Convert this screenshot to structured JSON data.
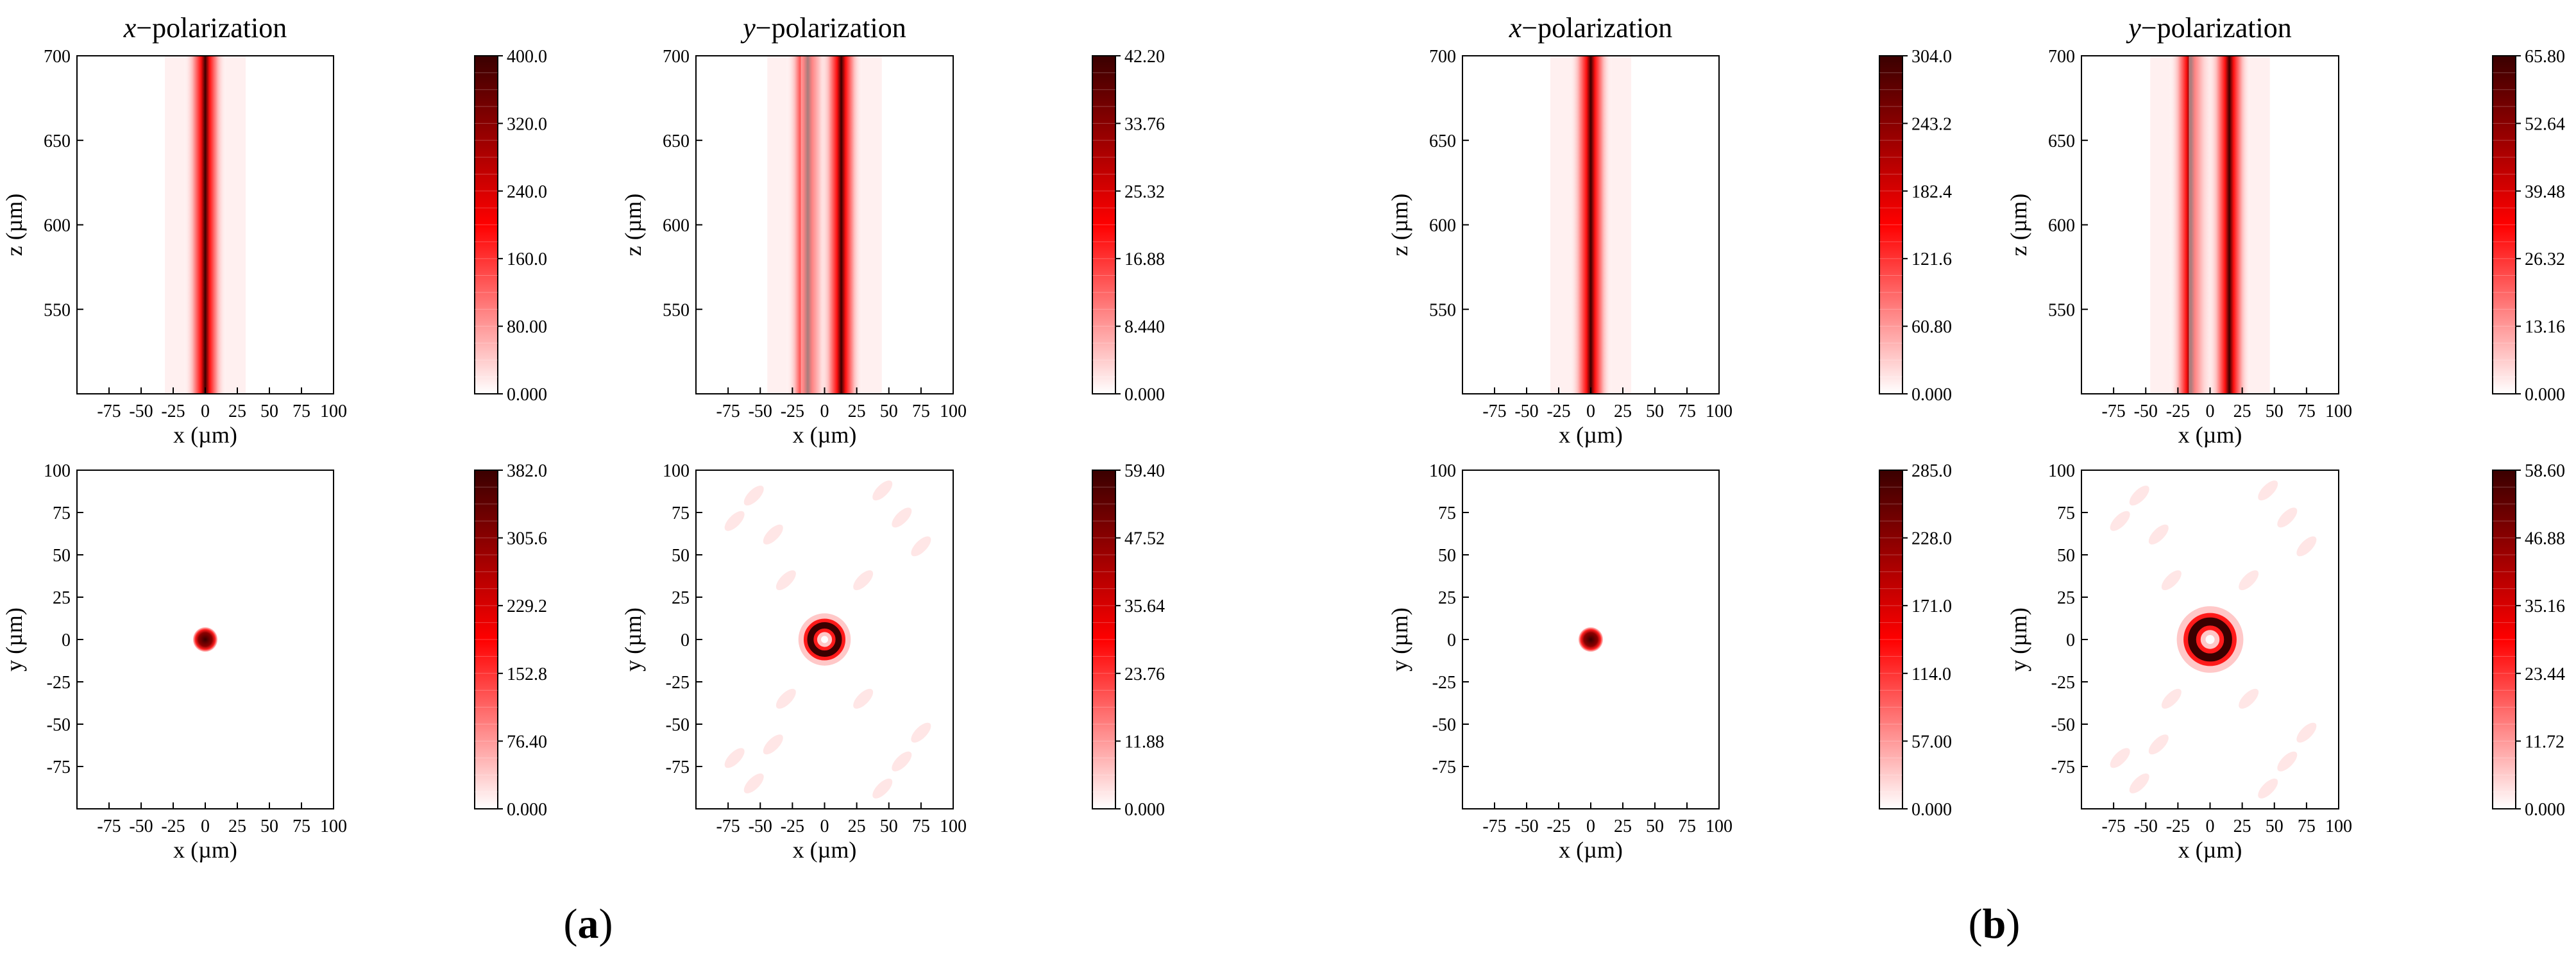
{
  "chart_data": [
    {
      "type": "heatmap",
      "panel": "a",
      "row": "top",
      "pol": "x",
      "title": "x−polarization",
      "title_var": "x",
      "title_rest": "−polarization",
      "xlabel": "x (µm)",
      "ylabel": "z (µm)",
      "xlim": [
        -100,
        100
      ],
      "ylim": [
        500,
        700
      ],
      "xticks": [
        "-75",
        "-50",
        "-25",
        "0",
        "25",
        "50",
        "75",
        "100"
      ],
      "yticks": [
        "550",
        "600",
        "650",
        "700"
      ],
      "colorbar": [
        "0.000",
        "80.00",
        "160.0",
        "240.0",
        "320.0",
        "400.0"
      ],
      "feature": {
        "kind": "beam",
        "centers": [
          0
        ],
        "width": 7
      }
    },
    {
      "type": "heatmap",
      "panel": "a",
      "row": "top",
      "pol": "y",
      "title": "y−polarization",
      "title_var": "y",
      "title_rest": "−polarization",
      "xlabel": "x (µm)",
      "ylabel": "z (µm)",
      "xlim": [
        -100,
        100
      ],
      "ylim": [
        500,
        700
      ],
      "xticks": [
        "-75",
        "-50",
        "-25",
        "0",
        "25",
        "50",
        "75",
        "100"
      ],
      "yticks": [
        "550",
        "600",
        "650",
        "700"
      ],
      "colorbar": [
        "0.000",
        "8.440",
        "16.88",
        "25.32",
        "33.76",
        "42.20"
      ],
      "feature": {
        "kind": "beam",
        "centers": [
          -13,
          13
        ],
        "width": 7
      }
    },
    {
      "type": "heatmap",
      "panel": "b",
      "row": "top",
      "pol": "x",
      "title": "x−polarization",
      "title_var": "x",
      "title_rest": "−polarization",
      "xlabel": "x (µm)",
      "ylabel": "z (µm)",
      "xlim": [
        -100,
        100
      ],
      "ylim": [
        500,
        700
      ],
      "xticks": [
        "-75",
        "-50",
        "-25",
        "0",
        "25",
        "50",
        "75",
        "100"
      ],
      "yticks": [
        "550",
        "600",
        "650",
        "700"
      ],
      "colorbar": [
        "0.000",
        "60.80",
        "121.6",
        "182.4",
        "243.2",
        "304.0"
      ],
      "feature": {
        "kind": "beam",
        "centers": [
          0
        ],
        "width": 7
      }
    },
    {
      "type": "heatmap",
      "panel": "b",
      "row": "top",
      "pol": "y",
      "title": "y−polarization",
      "title_var": "y",
      "title_rest": "−polarization",
      "xlabel": "x (µm)",
      "ylabel": "z (µm)",
      "xlim": [
        -100,
        100
      ],
      "ylim": [
        500,
        700
      ],
      "xticks": [
        "-75",
        "-50",
        "-25",
        "0",
        "25",
        "50",
        "75",
        "100"
      ],
      "yticks": [
        "550",
        "600",
        "650",
        "700"
      ],
      "colorbar": [
        "0.000",
        "13.16",
        "26.32",
        "39.48",
        "52.64",
        "65.80"
      ],
      "feature": {
        "kind": "beam",
        "centers": [
          -15,
          15
        ],
        "width": 7
      }
    },
    {
      "type": "heatmap",
      "panel": "a",
      "row": "bottom",
      "pol": "x",
      "xlabel": "x (µm)",
      "ylabel": "y (µm)",
      "xlim": [
        -100,
        100
      ],
      "ylim": [
        -100,
        100
      ],
      "xticks": [
        "-75",
        "-50",
        "-25",
        "0",
        "25",
        "50",
        "75",
        "100"
      ],
      "yticks": [
        "-75",
        "-50",
        "-25",
        "0",
        "25",
        "50",
        "75",
        "100"
      ],
      "colorbar": [
        "0.000",
        "76.40",
        "152.8",
        "229.2",
        "305.6",
        "382.0"
      ],
      "feature": {
        "kind": "spot",
        "radius": 6
      }
    },
    {
      "type": "heatmap",
      "panel": "a",
      "row": "bottom",
      "pol": "y",
      "xlabel": "x (µm)",
      "ylabel": "y (µm)",
      "xlim": [
        -100,
        100
      ],
      "ylim": [
        -100,
        100
      ],
      "xticks": [
        "-75",
        "-50",
        "-25",
        "0",
        "25",
        "50",
        "75",
        "100"
      ],
      "yticks": [
        "-75",
        "-50",
        "-25",
        "0",
        "25",
        "50",
        "75",
        "100"
      ],
      "colorbar": [
        "0.000",
        "11.88",
        "23.76",
        "35.64",
        "47.52",
        "59.40"
      ],
      "feature": {
        "kind": "ring",
        "radius": 11
      }
    },
    {
      "type": "heatmap",
      "panel": "b",
      "row": "bottom",
      "pol": "x",
      "xlabel": "x (µm)",
      "ylabel": "y (µm)",
      "xlim": [
        -100,
        100
      ],
      "ylim": [
        -100,
        100
      ],
      "xticks": [
        "-75",
        "-50",
        "-25",
        "0",
        "25",
        "50",
        "75",
        "100"
      ],
      "yticks": [
        "-75",
        "-50",
        "-25",
        "0",
        "25",
        "50",
        "75",
        "100"
      ],
      "colorbar": [
        "0.000",
        "57.00",
        "114.0",
        "171.0",
        "228.0",
        "285.0"
      ],
      "feature": {
        "kind": "spot",
        "radius": 6
      }
    },
    {
      "type": "heatmap",
      "panel": "b",
      "row": "bottom",
      "pol": "y",
      "xlabel": "x (µm)",
      "ylabel": "y (µm)",
      "xlim": [
        -100,
        100
      ],
      "ylim": [
        -100,
        100
      ],
      "xticks": [
        "-75",
        "-50",
        "-25",
        "0",
        "25",
        "50",
        "75",
        "100"
      ],
      "yticks": [
        "-75",
        "-50",
        "-25",
        "0",
        "25",
        "50",
        "75",
        "100"
      ],
      "colorbar": [
        "0.000",
        "11.72",
        "23.44",
        "35.16",
        "46.88",
        "58.60"
      ],
      "feature": {
        "kind": "ring",
        "radius": 14
      }
    }
  ],
  "panel_labels": {
    "a": "a",
    "b": "b"
  },
  "colors": {
    "low": "#ffffff",
    "mid": "#ff0000",
    "high": "#3a0000",
    "axis": "#000000"
  }
}
